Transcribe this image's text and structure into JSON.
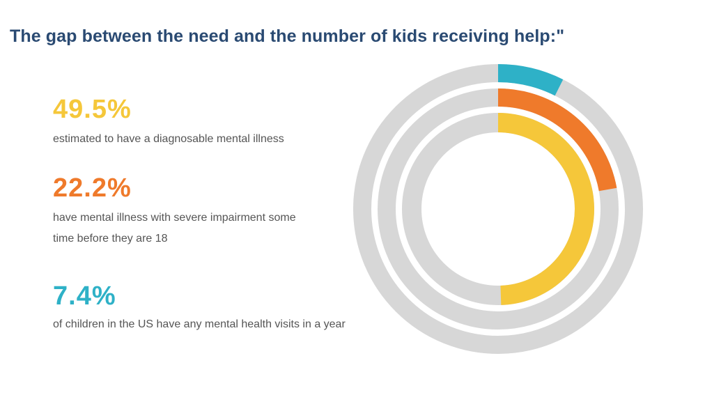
{
  "title": "The gap between the need and the number of kids receiving help:\"",
  "colors": {
    "title": "#2a4a72",
    "track": "#d7d7d7",
    "background": "#ffffff"
  },
  "stats": [
    {
      "value": "49.5%",
      "desc_lines": [
        "estimated to have a diagnosable mental illness"
      ],
      "color": "#f5c73a"
    },
    {
      "value": "22.2%",
      "desc_lines": [
        "have mental illness with severe impairment some",
        "time before they are 18"
      ],
      "color": "#ef7a2b"
    },
    {
      "value": "7.4%",
      "desc_lines": [
        "of children in the US have any mental health visits in a year"
      ],
      "color": "#2eb1c7"
    }
  ],
  "chart_data": {
    "type": "radial-bar",
    "title": "The gap between the need and the number of kids receiving help:\"",
    "max": 100,
    "series": [
      {
        "name": "estimated to have a diagnosable mental illness",
        "value": 49.5,
        "color": "#f5c73a",
        "ring": "inner"
      },
      {
        "name": "have mental illness with severe impairment some time before they are 18",
        "value": 22.2,
        "color": "#ef7a2b",
        "ring": "middle"
      },
      {
        "name": "of children in the US have any mental health visits in a year",
        "value": 7.4,
        "color": "#2eb1c7",
        "ring": "outer"
      }
    ]
  }
}
